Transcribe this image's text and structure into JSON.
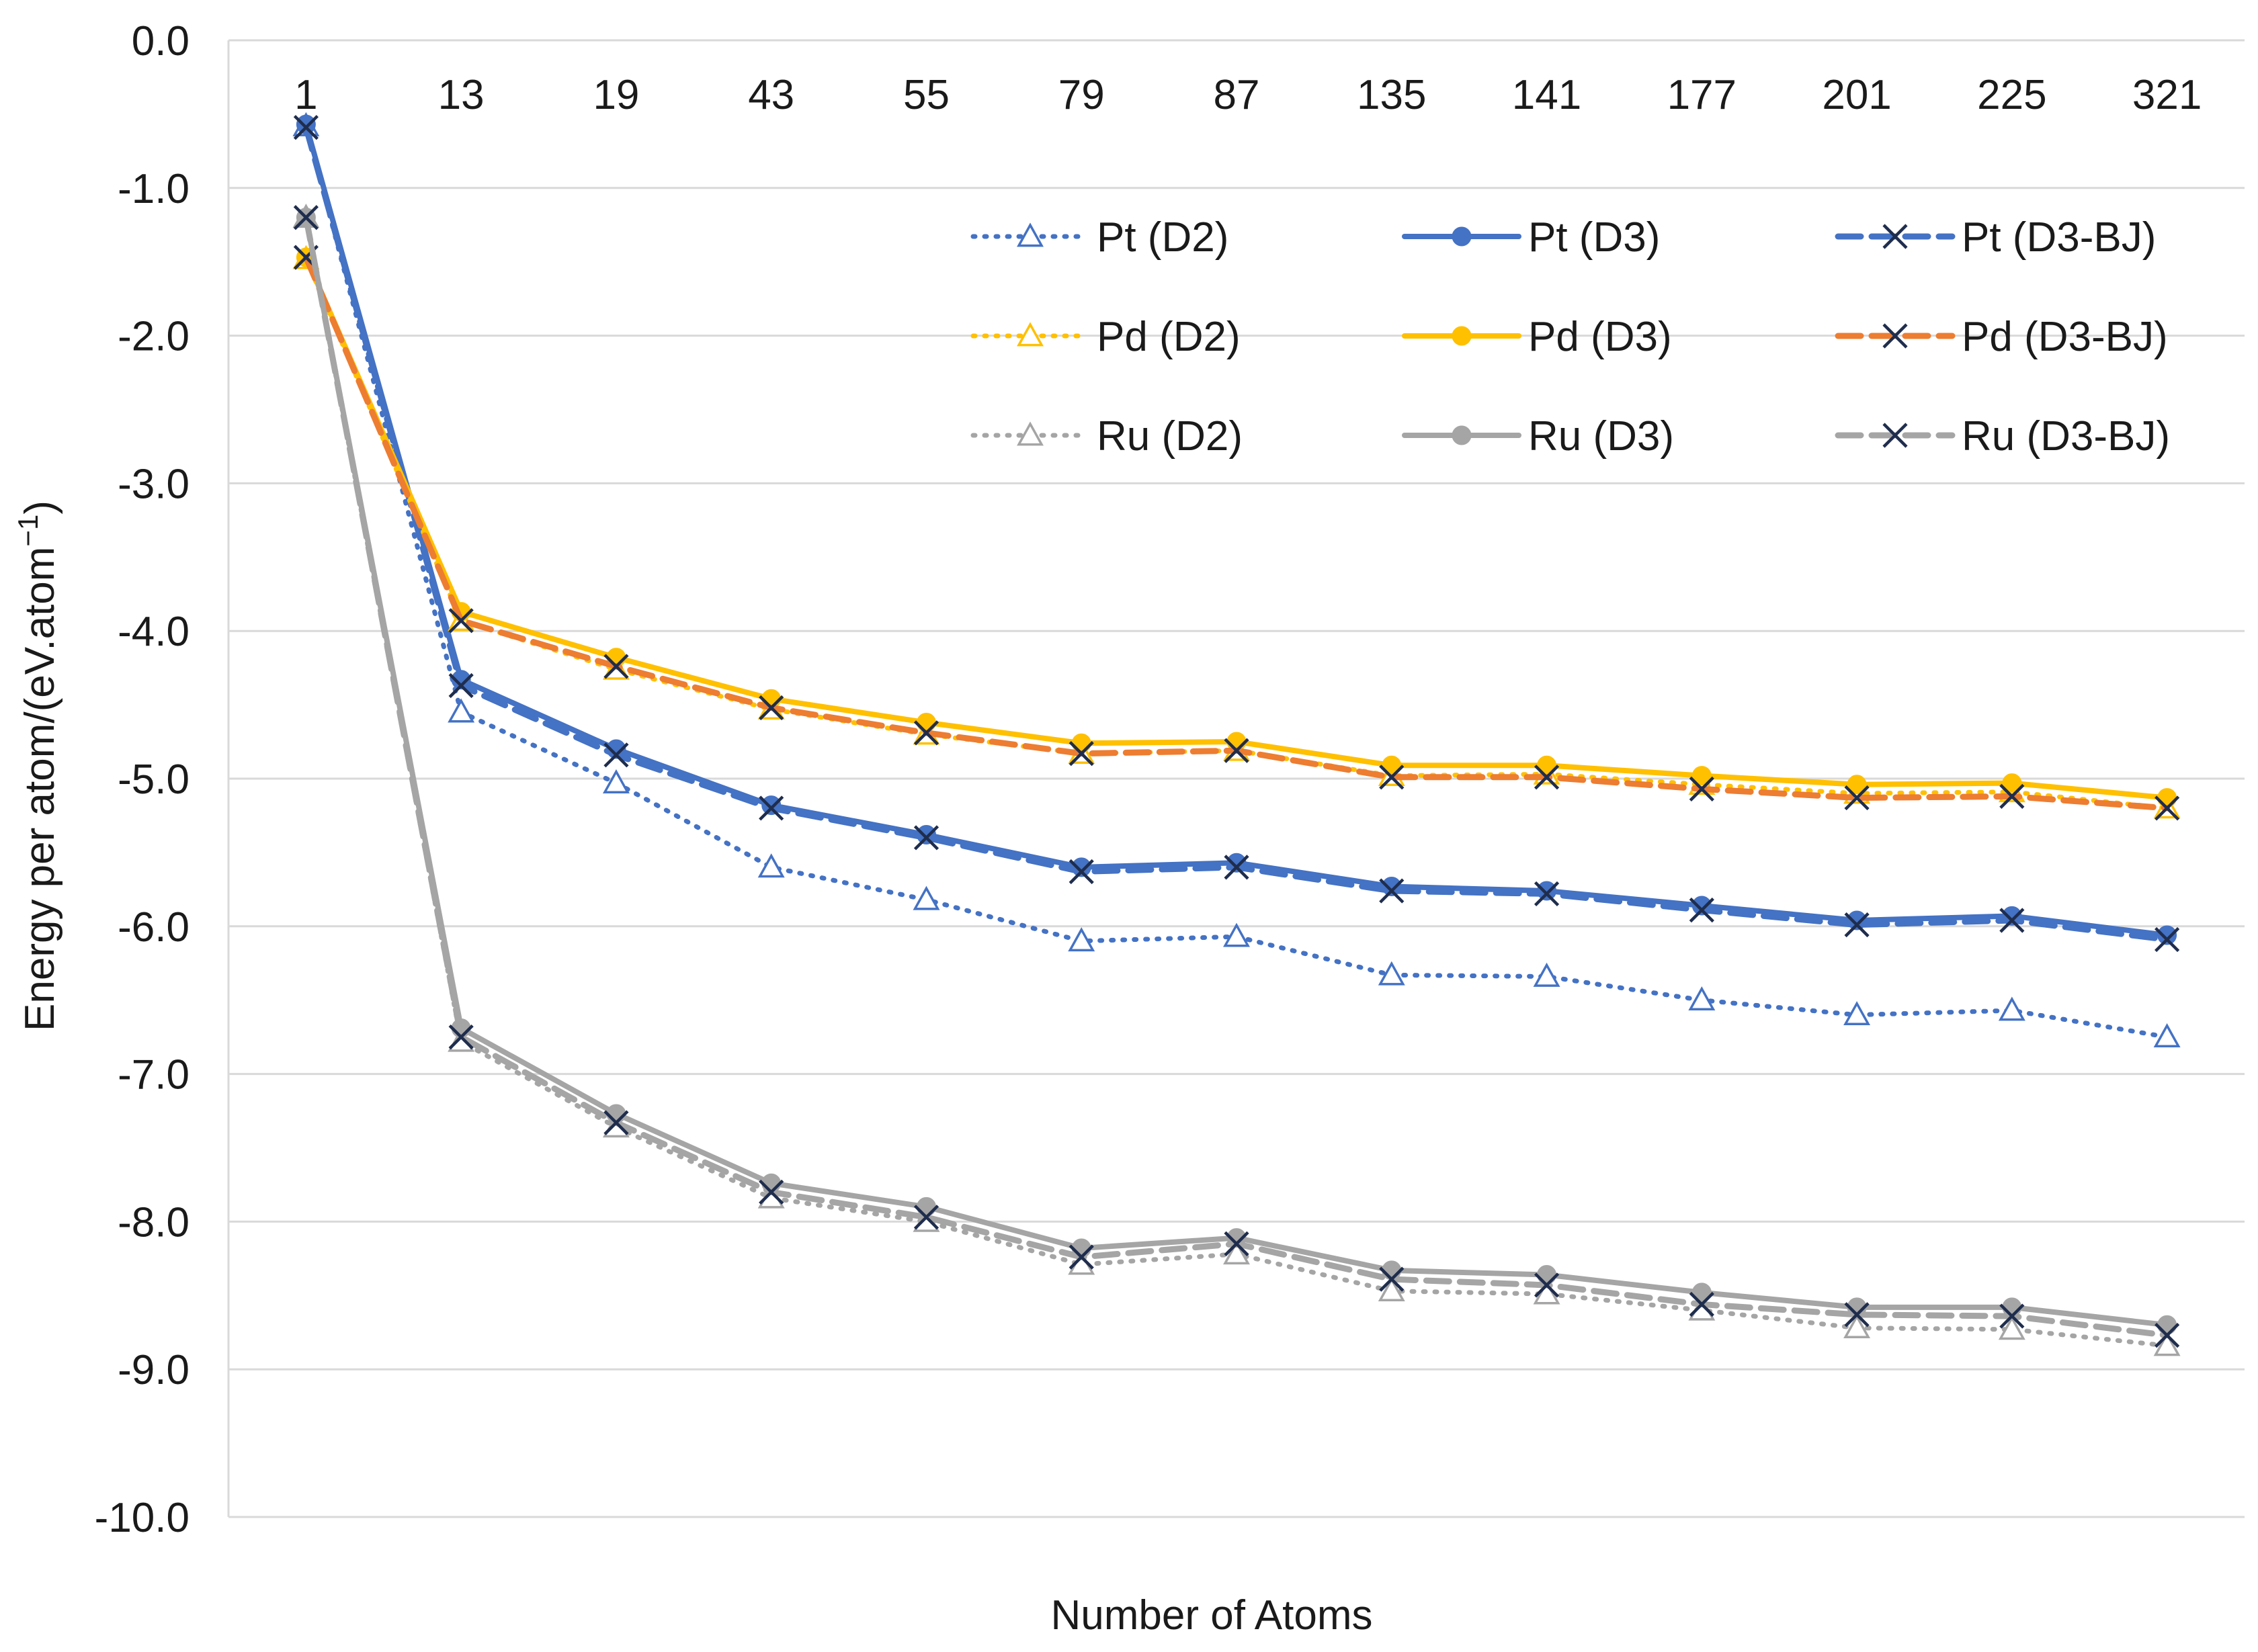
{
  "chart_data": {
    "type": "line",
    "title": "",
    "xlabel": "Number of Atoms",
    "ylabel_main": "Energy per atom/(eV.atom",
    "ylabel_sup": "−1",
    "ylabel_close": ")",
    "ylim": [
      -10.0,
      0.0
    ],
    "ystep": 1.0,
    "ytick_labels": [
      "0.0",
      "-1.0",
      "-2.0",
      "-3.0",
      "-4.0",
      "-5.0",
      "-6.0",
      "-7.0",
      "-8.0",
      "-9.0",
      "-10.0"
    ],
    "categories": [
      "1",
      "13",
      "19",
      "43",
      "55",
      "79",
      "87",
      "135",
      "141",
      "177",
      "201",
      "225",
      "321"
    ],
    "xaxis_position": "top",
    "grid": true,
    "legend_position": "top-right",
    "series": [
      {
        "name": "Pt (D2)",
        "color": "#4472C4",
        "dash": "dot",
        "marker": "open-triangle",
        "values": [
          -0.58,
          -4.55,
          -5.03,
          -5.6,
          -5.82,
          -6.1,
          -6.07,
          -6.33,
          -6.34,
          -6.5,
          -6.6,
          -6.57,
          -6.75
        ]
      },
      {
        "name": "Pt (D3)",
        "color": "#4472C4",
        "dash": "solid",
        "marker": "circle",
        "values": [
          -0.57,
          -4.33,
          -4.8,
          -5.18,
          -5.38,
          -5.6,
          -5.57,
          -5.73,
          -5.76,
          -5.86,
          -5.96,
          -5.93,
          -6.06
        ]
      },
      {
        "name": "Pt (D3-BJ)",
        "color": "#4472C4",
        "dash": "dash",
        "marker": "x",
        "values": [
          -0.59,
          -4.37,
          -4.84,
          -5.2,
          -5.4,
          -5.63,
          -5.6,
          -5.76,
          -5.78,
          -5.89,
          -5.99,
          -5.96,
          -6.09
        ]
      },
      {
        "name": "Pd (D2)",
        "color": "#FFC000",
        "dash": "dot",
        "marker": "open-triangle",
        "values": [
          -1.48,
          -3.93,
          -4.26,
          -4.53,
          -4.7,
          -4.83,
          -4.81,
          -4.98,
          -4.97,
          -5.04,
          -5.1,
          -5.09,
          -5.2
        ]
      },
      {
        "name": "Pd (D3)",
        "color": "#FFC000",
        "dash": "solid",
        "marker": "circle",
        "values": [
          -1.47,
          -3.87,
          -4.18,
          -4.46,
          -4.62,
          -4.76,
          -4.75,
          -4.91,
          -4.91,
          -4.98,
          -5.04,
          -5.03,
          -5.13
        ]
      },
      {
        "name": "Pd (D3-BJ)",
        "color": "#ED7D31",
        "dash": "dash",
        "marker": "x",
        "values": [
          -1.47,
          -3.93,
          -4.24,
          -4.52,
          -4.69,
          -4.83,
          -4.81,
          -4.99,
          -4.99,
          -5.07,
          -5.13,
          -5.12,
          -5.2
        ]
      },
      {
        "name": "Ru (D2)",
        "color": "#A5A5A5",
        "dash": "dot",
        "marker": "open-triangle",
        "values": [
          -1.2,
          -6.78,
          -7.36,
          -7.84,
          -8.0,
          -8.29,
          -8.22,
          -8.47,
          -8.49,
          -8.6,
          -8.72,
          -8.73,
          -8.84
        ]
      },
      {
        "name": "Ru (D3)",
        "color": "#A5A5A5",
        "dash": "solid",
        "marker": "circle",
        "values": [
          -1.2,
          -6.69,
          -7.27,
          -7.74,
          -7.9,
          -8.18,
          -8.11,
          -8.33,
          -8.36,
          -8.48,
          -8.58,
          -8.58,
          -8.7
        ]
      },
      {
        "name": "Ru (D3-BJ)",
        "color": "#A5A5A5",
        "dash": "dash",
        "marker": "x",
        "values": [
          -1.2,
          -6.75,
          -7.33,
          -7.8,
          -7.97,
          -8.24,
          -8.15,
          -8.39,
          -8.43,
          -8.56,
          -8.63,
          -8.64,
          -8.77
        ]
      }
    ]
  }
}
